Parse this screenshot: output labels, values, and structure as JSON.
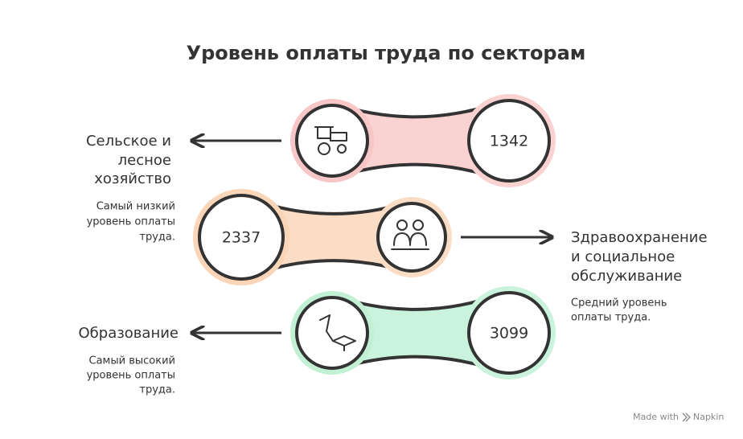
{
  "title": "Уровень оплаты труда по секторам",
  "items": [
    {
      "label": [
        "Сельское и",
        "лесное",
        "хозяйство"
      ],
      "description": [
        "Самый низкий",
        "уровень оплаты",
        "труда."
      ],
      "value": 1342
    },
    {
      "label": [
        "Здравоохранение",
        "и социальное",
        "обслуживание"
      ],
      "description": [
        "Средний уровень",
        "оплаты труда."
      ],
      "value": 2337
    },
    {
      "label": [
        "Образование"
      ],
      "description": [
        "Самый высокий",
        "уровень оплаты",
        "труда."
      ],
      "value": 3099
    }
  ],
  "footer": {
    "made_with": "Made with",
    "brand": "Napkin"
  }
}
